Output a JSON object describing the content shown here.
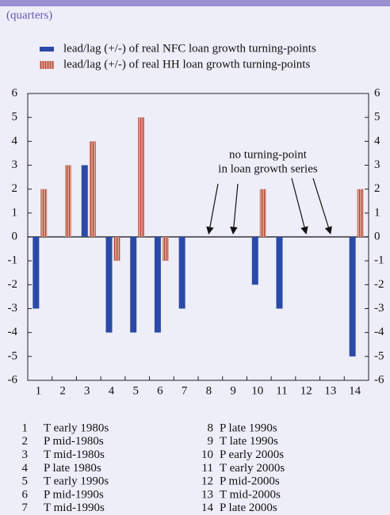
{
  "chart_data": {
    "type": "bar",
    "subtitle": "(quarters)",
    "categories": [
      "1",
      "2",
      "3",
      "4",
      "5",
      "6",
      "7",
      "8",
      "9",
      "10",
      "11",
      "12",
      "13",
      "14"
    ],
    "series": [
      {
        "name": "lead/lag (+/-) of real NFC loan growth turning-points",
        "color": "#2b4aa8",
        "values": [
          -3,
          0,
          3,
          -4,
          -4,
          -4,
          -3,
          null,
          null,
          -2,
          -3,
          null,
          null,
          -5
        ]
      },
      {
        "name": "lead/lag (+/-) of real HH loan growth turning-points",
        "color": "#d9a08c",
        "stripe": "#b5473c",
        "values": [
          2,
          3,
          4,
          -1,
          5,
          -1,
          0,
          null,
          null,
          2,
          0,
          null,
          null,
          2
        ]
      }
    ],
    "ylim": [
      -6,
      6
    ],
    "yticks": [
      -6,
      -5,
      -4,
      -3,
      -2,
      -1,
      0,
      1,
      2,
      3,
      4,
      5,
      6
    ],
    "annotation": [
      "no turning-point",
      "in loan growth series"
    ],
    "key": [
      {
        "n": "1",
        "label": "T  early 1980s"
      },
      {
        "n": "2",
        "label": "P  mid-1980s"
      },
      {
        "n": "3",
        "label": "T  mid-1980s"
      },
      {
        "n": "4",
        "label": "P  late 1980s"
      },
      {
        "n": "5",
        "label": "T  early 1990s"
      },
      {
        "n": "6",
        "label": "P  mid-1990s"
      },
      {
        "n": "7",
        "label": "T  mid-1990s"
      },
      {
        "n": "8",
        "label": "P  late 1990s"
      },
      {
        "n": "9",
        "label": "T  late 1990s"
      },
      {
        "n": "10",
        "label": "P  early 2000s"
      },
      {
        "n": "11",
        "label": "T  early 2000s"
      },
      {
        "n": "12",
        "label": "P  mid-2000s"
      },
      {
        "n": "13",
        "label": "T  mid-2000s"
      },
      {
        "n": "14",
        "label": "P  late 2000s"
      }
    ]
  }
}
